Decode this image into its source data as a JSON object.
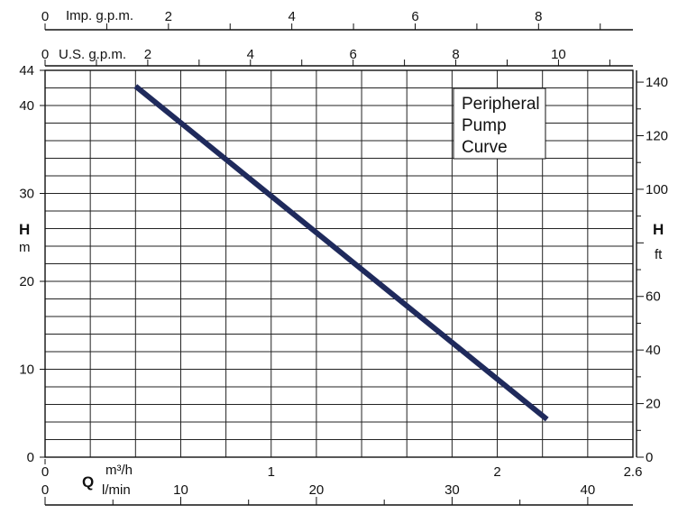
{
  "chart_data": {
    "type": "line",
    "title": "",
    "legend_box": {
      "lines": [
        "Peripheral",
        "Pump",
        "Curve"
      ],
      "placement": "top-right"
    },
    "x_axis": {
      "name": "Q",
      "unit_primary": "m³/h",
      "unit_secondary": "l/min",
      "range": [
        0,
        2.6
      ],
      "ticks": [
        {
          "value": 0,
          "label": "0"
        },
        {
          "value": 1,
          "label": "1"
        },
        {
          "value": 2,
          "label": "2"
        },
        {
          "value": 2.6,
          "label": "2.6"
        }
      ]
    },
    "x_axis_lmin": {
      "range": [
        0,
        43.33
      ],
      "ticks": [
        {
          "value": 0,
          "label": "0"
        },
        {
          "value": 10,
          "label": "10"
        },
        {
          "value": 20,
          "label": "20"
        },
        {
          "value": 30,
          "label": "30"
        },
        {
          "value": 40,
          "label": "40"
        }
      ]
    },
    "top_axis_usgpm": {
      "label": "U.S. g.p.m.",
      "range": [
        0,
        11.45
      ],
      "ticks": [
        {
          "value": 0,
          "label": "0"
        },
        {
          "value": 2,
          "label": "2"
        },
        {
          "value": 4,
          "label": "4"
        },
        {
          "value": 6,
          "label": "6"
        },
        {
          "value": 8,
          "label": "8"
        },
        {
          "value": 10,
          "label": "10"
        }
      ]
    },
    "top_axis_impgpm": {
      "label": "Imp. g.p.m.",
      "range": [
        0,
        9.53
      ],
      "ticks": [
        {
          "value": 0,
          "label": "0"
        },
        {
          "value": 2,
          "label": "2"
        },
        {
          "value": 4,
          "label": "4"
        },
        {
          "value": 6,
          "label": "6"
        },
        {
          "value": 8,
          "label": "8"
        }
      ]
    },
    "y_axis_left": {
      "name": "H",
      "unit": "m",
      "range": [
        0,
        44
      ],
      "ticks": [
        {
          "value": 0,
          "label": "0"
        },
        {
          "value": 10,
          "label": "10"
        },
        {
          "value": 20,
          "label": "20"
        },
        {
          "value": 30,
          "label": "30"
        },
        {
          "value": 40,
          "label": "40"
        },
        {
          "value": 44,
          "label": "44"
        }
      ]
    },
    "y_axis_right": {
      "name": "H",
      "unit": "ft",
      "range": [
        0,
        144.4
      ],
      "ticks": [
        {
          "value": 0,
          "label": "0"
        },
        {
          "value": 20,
          "label": "20"
        },
        {
          "value": 40,
          "label": "40"
        },
        {
          "value": 60,
          "label": "60"
        },
        {
          "value": 100,
          "label": "100"
        },
        {
          "value": 120,
          "label": "120"
        },
        {
          "value": 140,
          "label": "140"
        }
      ]
    },
    "grid": true,
    "series": [
      {
        "color": "#1f2a5c",
        "points": [
          {
            "x": 0.4,
            "y": 42.2
          },
          {
            "x": 2.22,
            "y": 4.3
          }
        ]
      }
    ]
  }
}
